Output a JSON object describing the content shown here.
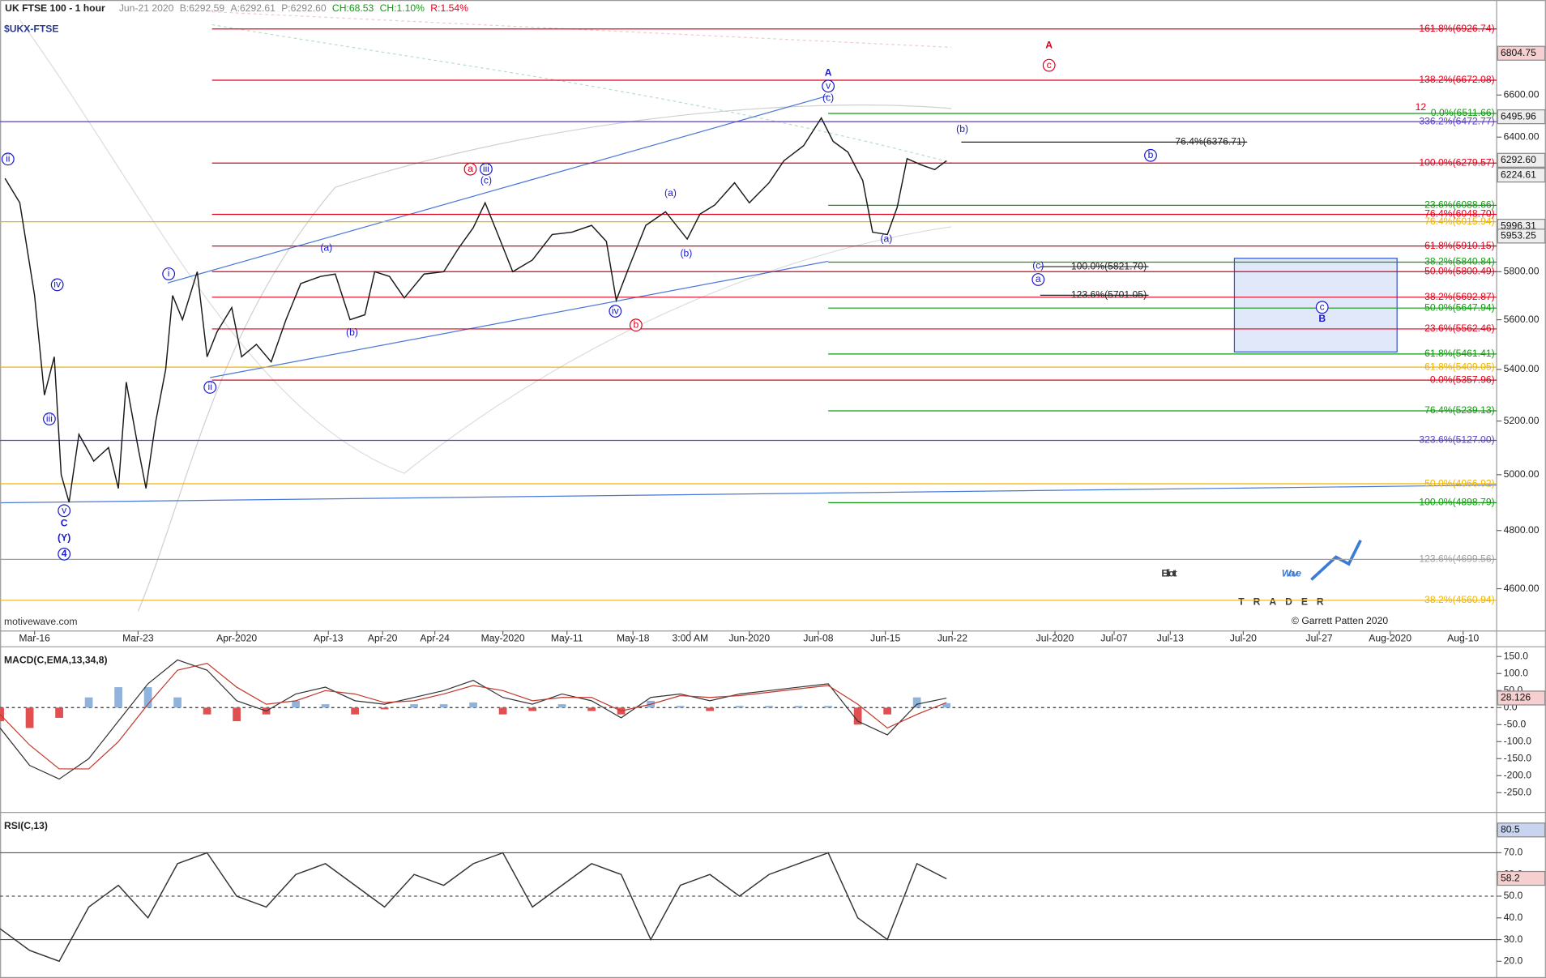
{
  "chart_data": [
    {
      "type": "line",
      "title": "$UKX-FTSE",
      "subtitle": "UK FTSE 100 - 1 hour",
      "quote": [
        "Jun-21 2020",
        "B:6292.59",
        "A:6292.61",
        "P:6292.60",
        "CH:68.53",
        "CH:1.10%",
        "R:1.54%"
      ],
      "source": "motivewave.com",
      "log_scale": true,
      "ylim": [
        4460,
        7075
      ],
      "xlim": [
        0,
        1518
      ],
      "yticks": [
        {
          "value": 6600,
          "label": "6600.00"
        },
        {
          "value": 6400,
          "label": "6400.00"
        },
        {
          "value": 5800,
          "label": "5800.00"
        },
        {
          "value": 5600,
          "label": "5600.00"
        },
        {
          "value": 5400,
          "label": "5400.00"
        },
        {
          "value": 5200,
          "label": "5200.00"
        },
        {
          "value": 5000,
          "label": "5000.00"
        },
        {
          "value": 4800,
          "label": "4800.00"
        },
        {
          "value": 4600,
          "label": "4600.00"
        }
      ],
      "xticks": [
        {
          "value": 35,
          "label": "Mar-16"
        },
        {
          "value": 140,
          "label": "Mar-23"
        },
        {
          "value": 240,
          "label": "Apr-2020"
        },
        {
          "value": 333,
          "label": "Apr-13"
        },
        {
          "value": 388,
          "label": "Apr-20"
        },
        {
          "value": 441,
          "label": "Apr-24"
        },
        {
          "value": 510,
          "label": "May-2020"
        },
        {
          "value": 575,
          "label": "May-11"
        },
        {
          "value": 642,
          "label": "May-18"
        },
        {
          "value": 700,
          "label": "3:00 AM"
        },
        {
          "value": 760,
          "label": "Jun-2020"
        },
        {
          "value": 830,
          "label": "Jun-08"
        },
        {
          "value": 898,
          "label": "Jun-15"
        },
        {
          "value": 966,
          "label": "Jun-22"
        },
        {
          "value": 1070,
          "label": "Jul-2020"
        },
        {
          "value": 1130,
          "label": "Jul-07"
        },
        {
          "value": 1187,
          "label": "Jul-13"
        },
        {
          "value": 1261,
          "label": "Jul-20"
        },
        {
          "value": 1338,
          "label": "Jul-27"
        },
        {
          "value": 1410,
          "label": "Aug-2020"
        },
        {
          "value": 1484,
          "label": "Aug-10"
        }
      ],
      "color": "#1a1a1a",
      "x": [
        5,
        20,
        35,
        45,
        55,
        62,
        70,
        80,
        95,
        110,
        120,
        128,
        140,
        148,
        158,
        168,
        175,
        185,
        200,
        210,
        220,
        235,
        245,
        260,
        275,
        290,
        305,
        325,
        340,
        355,
        370,
        380,
        395,
        410,
        430,
        450,
        465,
        480,
        492,
        505,
        520,
        540,
        560,
        580,
        600,
        615,
        625,
        638,
        655,
        675,
        697,
        710,
        725,
        745,
        760,
        780,
        795,
        815,
        833,
        845,
        860,
        875,
        885,
        900,
        910,
        920,
        935,
        948,
        960
      ],
      "values": [
        6210,
        6100,
        5700,
        5300,
        5450,
        5000,
        4900,
        5150,
        5050,
        5100,
        4950,
        5350,
        5100,
        4950,
        5200,
        5400,
        5700,
        5600,
        5800,
        5450,
        5550,
        5650,
        5450,
        5500,
        5430,
        5600,
        5750,
        5780,
        5790,
        5600,
        5620,
        5800,
        5780,
        5690,
        5790,
        5800,
        5900,
        5990,
        6100,
        5960,
        5800,
        5850,
        5960,
        5970,
        6000,
        5930,
        5680,
        5820,
        6000,
        6060,
        5940,
        6050,
        6090,
        6190,
        6100,
        6190,
        6290,
        6360,
        6490,
        6380,
        6330,
        6200,
        5970,
        5960,
        6080,
        6300,
        6270,
        6250,
        6290
      ],
      "fib_sets": [
        {
          "color": "#e0001b",
          "start": 215,
          "end": 1518,
          "levels": [
            {
              "label": "161.8%(6926.74)",
              "value": 6926.74
            },
            {
              "label": "138.2%(6672.08)",
              "value": 6672.08
            },
            {
              "label": "100.0%(6279.57)",
              "value": 6279.57
            },
            {
              "label": "76.4%(6048.70)",
              "value": 6048.7
            },
            {
              "label": "61.8%(5910.15)",
              "value": 5910.15
            },
            {
              "label": "50.0%(5800.49)",
              "value": 5800.49
            },
            {
              "label": "38.2%(5692.87)",
              "value": 5692.87
            },
            {
              "label": "23.6%(5562.46)",
              "value": 5562.46
            },
            {
              "label": "0.0%(5357.96)",
              "value": 5357.96
            }
          ]
        },
        {
          "color": "#119a11",
          "start": 840,
          "end": 1518,
          "levels": [
            {
              "label": "0.0%(6511.66)",
              "value": 6511.66
            },
            {
              "label": "23.6%(6088.66)",
              "value": 6088.66
            },
            {
              "label": "38.2%(5840.84)",
              "value": 5840.84
            },
            {
              "label": "50.0%(5647.94)",
              "value": 5647.94
            },
            {
              "label": "61.8%(5461.41)",
              "value": 5461.41
            },
            {
              "label": "76.4%(5239.13)",
              "value": 5239.13
            },
            {
              "label": "100.0%(4898.79)",
              "value": 4898.79
            }
          ]
        },
        {
          "color": "#f0b400",
          "start": 0,
          "end": 1518,
          "levels": [
            {
              "label": "76.4%(6015.94)",
              "value": 6015.94
            },
            {
              "label": "61.8%(5409.05)",
              "value": 5409.05
            },
            {
              "label": "50.0%(4966.92)",
              "value": 4966.92
            },
            {
              "label": "38.2%(4560.94)",
              "value": 4560.94
            }
          ]
        },
        {
          "color": "#5a3fc0",
          "start": 0,
          "end": 1518,
          "levels": [
            {
              "label": "336.2%(6472.77)",
              "value": 6472.77
            },
            {
              "label": "323.6%(5127.00)",
              "value": 5127.0
            }
          ]
        },
        {
          "color": "#a0a0a0",
          "start": 0,
          "end": 1518,
          "levels": [
            {
              "label": "123.6%(4699.56)",
              "value": 4699.56
            }
          ]
        },
        {
          "color": "#222222",
          "start": 975,
          "end": 1265,
          "levels": [
            {
              "label": "76.4%(6376.71)",
              "value": 6376.71
            }
          ]
        },
        {
          "color": "#222222",
          "start": 1055,
          "end": 1165,
          "levels": [
            {
              "label": "100.0%(5821.70)",
              "value": 5821.7
            },
            {
              "label": "123.6%(5701.05)",
              "value": 5701.05
            }
          ]
        }
      ],
      "badges": [
        {
          "value": 6804.75,
          "label": "6804.75",
          "color": "#f6d0d0"
        },
        {
          "value": 6495.96,
          "label": "6495.96",
          "color": "#eeeeee"
        },
        {
          "value": 6292.6,
          "label": "6292.60",
          "color": "#eeeeee"
        },
        {
          "value": 6224.61,
          "label": "6224.61",
          "color": "#eeeeee"
        },
        {
          "value": 5996.31,
          "label": "5996.31",
          "color": "#eeeeee"
        },
        {
          "value": 5953.25,
          "label": "5953.25",
          "color": "#eeeeee"
        }
      ],
      "annotations": [
        {
          "text": "ii",
          "x": 8,
          "y": 6298,
          "color": "#1a1acc",
          "circled": true
        },
        {
          "text": "iv",
          "x": 58,
          "y": 5745,
          "color": "#1a1acc",
          "circled": true
        },
        {
          "text": "iii",
          "x": 50,
          "y": 5208,
          "color": "#1a1acc",
          "circled": true
        },
        {
          "text": "v",
          "x": 65,
          "y": 4870,
          "color": "#1a1acc",
          "circled": true
        },
        {
          "text": "C",
          "x": 65,
          "y": 4824,
          "color": "#1a1acc",
          "bold": true
        },
        {
          "text": "(Y)",
          "x": 65,
          "y": 4773,
          "color": "#1a1acc",
          "bold": true
        },
        {
          "text": "4",
          "x": 65,
          "y": 4718,
          "color": "#1a1acc",
          "circled": true,
          "bold": true
        },
        {
          "text": "i",
          "x": 171,
          "y": 5791,
          "color": "#1a1acc",
          "circled": true
        },
        {
          "text": "ii",
          "x": 213,
          "y": 5330,
          "color": "#1a1acc",
          "circled": true
        },
        {
          "text": "(a)",
          "x": 331,
          "y": 5901,
          "color": "#1a1acc"
        },
        {
          "text": "(b)",
          "x": 357,
          "y": 5546,
          "color": "#1a1acc"
        },
        {
          "text": "a",
          "x": 477,
          "y": 6252,
          "color": "#e0001b",
          "circled": true
        },
        {
          "text": "iii",
          "x": 493,
          "y": 6252,
          "color": "#1a1acc",
          "circled": true
        },
        {
          "text": "(c)",
          "x": 493,
          "y": 6198,
          "color": "#1a1acc"
        },
        {
          "text": "(a)",
          "x": 680,
          "y": 6141,
          "color": "#1a1acc"
        },
        {
          "text": "(b)",
          "x": 696,
          "y": 5876,
          "color": "#1a1acc"
        },
        {
          "text": "iv",
          "x": 624,
          "y": 5635,
          "color": "#1a1acc",
          "circled": true
        },
        {
          "text": "b",
          "x": 645,
          "y": 5578,
          "color": "#e0001b",
          "circled": true
        },
        {
          "text": "A",
          "x": 840,
          "y": 6706,
          "color": "#1a1acc",
          "bold": true
        },
        {
          "text": "v",
          "x": 840,
          "y": 6643,
          "color": "#1a1acc",
          "circled": true
        },
        {
          "text": "(c)",
          "x": 840,
          "y": 6585,
          "color": "#1a1acc"
        },
        {
          "text": "(b)",
          "x": 976,
          "y": 6435,
          "color": "#1a1acc"
        },
        {
          "text": "b",
          "x": 1167,
          "y": 6315,
          "color": "#1a1acc",
          "circled": true
        },
        {
          "text": "(a)",
          "x": 899,
          "y": 5939,
          "color": "#1a1acc"
        },
        {
          "text": "(c)",
          "x": 1053,
          "y": 5825,
          "color": "#1a1acc"
        },
        {
          "text": "a",
          "x": 1053,
          "y": 5767,
          "color": "#1a1acc",
          "circled": true
        },
        {
          "text": "A",
          "x": 1064,
          "y": 6843,
          "color": "#e0001b",
          "bold": true
        },
        {
          "text": "c",
          "x": 1064,
          "y": 6745,
          "color": "#e0001b",
          "circled": true
        },
        {
          "text": "c",
          "x": 1341,
          "y": 5651,
          "color": "#1a1acc",
          "circled": true
        },
        {
          "text": "B",
          "x": 1341,
          "y": 5602,
          "color": "#1a1acc",
          "bold": true
        },
        {
          "text": "12",
          "x": 1441,
          "y": 6540,
          "color": "#e0001b"
        }
      ]
    },
    {
      "type": "macd",
      "title": "MACD(C,EMA,13,34,8)",
      "ylim": [
        -302,
        173
      ],
      "xlim": [
        0,
        1518
      ],
      "yticks": [
        {
          "value": 150,
          "label": "150.0"
        },
        {
          "value": 100,
          "label": "100.0"
        },
        {
          "value": 50,
          "label": "50.0"
        },
        {
          "value": 0,
          "label": "0.0"
        },
        {
          "value": -50,
          "label": "-50.0"
        },
        {
          "value": -100,
          "label": "-100.0"
        },
        {
          "value": -150,
          "label": "-150.0"
        },
        {
          "value": -200,
          "label": "-200.0"
        },
        {
          "value": -250,
          "label": "-250.0"
        }
      ],
      "x": [
        0,
        30,
        60,
        90,
        120,
        150,
        180,
        210,
        240,
        270,
        300,
        330,
        360,
        390,
        420,
        450,
        480,
        510,
        540,
        570,
        600,
        630,
        660,
        690,
        720,
        750,
        780,
        810,
        840,
        870,
        900,
        930,
        960
      ],
      "macd": [
        -60,
        -170,
        -210,
        -150,
        -40,
        70,
        140,
        110,
        20,
        -10,
        40,
        60,
        20,
        10,
        30,
        50,
        80,
        30,
        10,
        40,
        20,
        -30,
        30,
        40,
        20,
        40,
        50,
        60,
        70,
        -40,
        -80,
        10,
        28
      ],
      "signal": [
        -20,
        -110,
        -180,
        -180,
        -100,
        10,
        110,
        130,
        60,
        10,
        20,
        50,
        40,
        15,
        20,
        40,
        65,
        50,
        20,
        30,
        30,
        -10,
        10,
        35,
        30,
        35,
        45,
        55,
        65,
        10,
        -60,
        -20,
        15
      ],
      "histogram": [
        -40,
        -60,
        -30,
        30,
        60,
        60,
        30,
        -20,
        -40,
        -20,
        20,
        10,
        -20,
        -5,
        10,
        10,
        15,
        -20,
        -10,
        10,
        -10,
        -20,
        20,
        5,
        -10,
        5,
        5,
        5,
        5,
        -50,
        -20,
        30,
        13
      ],
      "macd_color": "#333333",
      "signal_color": "#c0392b",
      "up_color": "#8fb3dd",
      "down_color": "#e05050",
      "badges": [
        {
          "value": 28.126,
          "color": "#f6d0d0"
        }
      ]
    },
    {
      "type": "line",
      "title": "RSI(C,13)",
      "ylim": [
        13.2,
        87.7
      ],
      "xlim": [
        0,
        1518
      ],
      "yticks": [
        {
          "value": 80,
          "label": "80.0"
        },
        {
          "value": 70,
          "label": "70.0"
        },
        {
          "value": 60,
          "label": "60.0"
        },
        {
          "value": 50,
          "label": "50.0"
        },
        {
          "value": 40,
          "label": "40.0"
        },
        {
          "value": 30,
          "label": "30.0"
        },
        {
          "value": 20,
          "label": "20.0"
        }
      ],
      "levels": [
        {
          "value": 70,
          "dashed": false
        },
        {
          "value": 50,
          "dashed": true
        },
        {
          "value": 30,
          "dashed": false
        }
      ],
      "color": "#333333",
      "x": [
        0,
        30,
        60,
        90,
        120,
        150,
        180,
        210,
        240,
        270,
        300,
        330,
        360,
        390,
        420,
        450,
        480,
        510,
        540,
        570,
        600,
        630,
        660,
        690,
        720,
        750,
        780,
        810,
        840,
        870,
        900,
        930,
        960
      ],
      "values": [
        35,
        25,
        20,
        45,
        55,
        40,
        65,
        70,
        50,
        45,
        60,
        65,
        55,
        45,
        60,
        55,
        65,
        70,
        45,
        55,
        65,
        60,
        30,
        55,
        60,
        50,
        60,
        65,
        70,
        40,
        30,
        65,
        58
      ],
      "badges": [
        {
          "value": 80.5,
          "color": "#c8d4f0"
        },
        {
          "value": 58.2,
          "color": "#f6d0d0"
        }
      ]
    }
  ],
  "logo": {
    "word1": "Elliott",
    "word2": "Wave",
    "word3": "TRADER",
    "copyright": "© Garrett Patten 2020"
  }
}
